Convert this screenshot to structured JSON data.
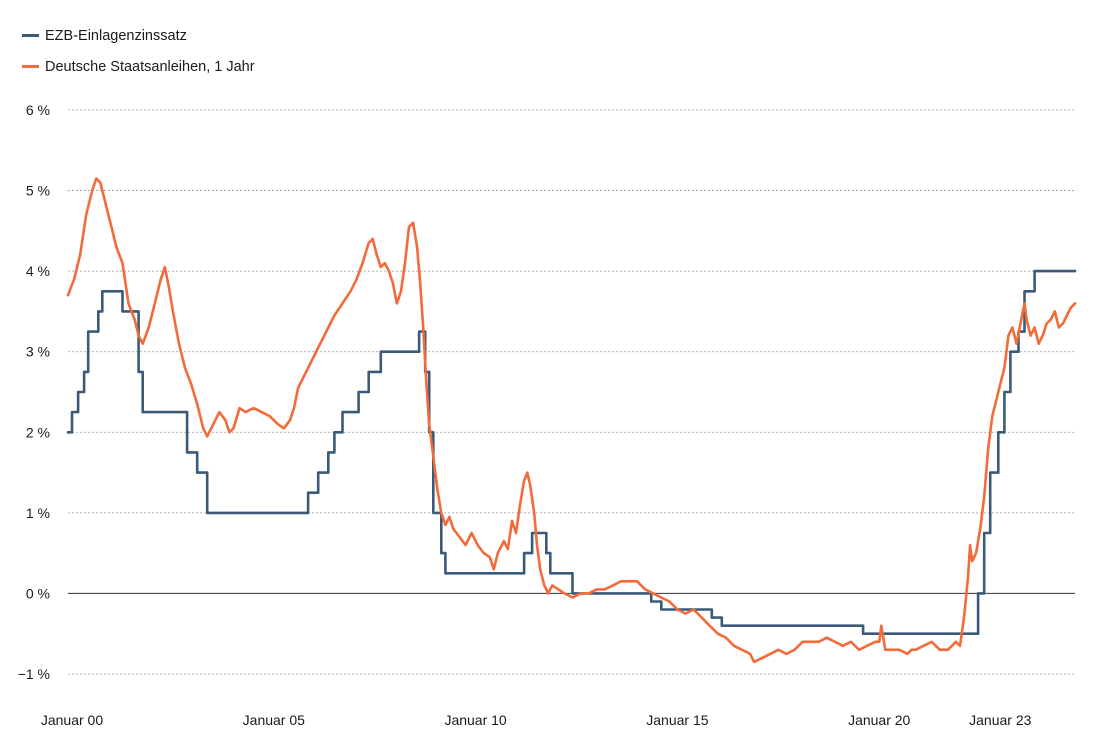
{
  "chart_data": {
    "type": "line",
    "title": "",
    "xlabel": "",
    "ylabel": "",
    "legend_position": "top-left",
    "grid": "horizontal-dashed",
    "xlim": [
      2000.0,
      2024.95
    ],
    "ylim": [
      -1,
      6
    ],
    "x_ticks": [
      {
        "value": 2000.0,
        "label": "Januar 00"
      },
      {
        "value": 2005.0,
        "label": "Januar 05"
      },
      {
        "value": 2010.0,
        "label": "Januar 10"
      },
      {
        "value": 2015.0,
        "label": "Januar 15"
      },
      {
        "value": 2020.0,
        "label": "Januar 20"
      },
      {
        "value": 2023.0,
        "label": "Januar 23"
      }
    ],
    "y_ticks": [
      {
        "value": 6,
        "label": "6 %"
      },
      {
        "value": 5,
        "label": "5 %"
      },
      {
        "value": 4,
        "label": "4 %"
      },
      {
        "value": 3,
        "label": "3 %"
      },
      {
        "value": 2,
        "label": "2 %"
      },
      {
        "value": 1,
        "label": "1 %"
      },
      {
        "value": 0,
        "label": "0 %"
      },
      {
        "value": -1,
        "label": "−1 %"
      }
    ],
    "series": [
      {
        "name": "EZB-Einlagenzinssatz",
        "color": "#3a5a78",
        "style": "step",
        "points": [
          [
            2000.0,
            2.0
          ],
          [
            2000.1,
            2.25
          ],
          [
            2000.25,
            2.5
          ],
          [
            2000.4,
            2.75
          ],
          [
            2000.5,
            3.25
          ],
          [
            2000.75,
            3.5
          ],
          [
            2000.85,
            3.75
          ],
          [
            2001.35,
            3.5
          ],
          [
            2001.75,
            2.75
          ],
          [
            2001.85,
            2.25
          ],
          [
            2002.95,
            1.75
          ],
          [
            2003.2,
            1.5
          ],
          [
            2003.45,
            1.0
          ],
          [
            2005.95,
            1.25
          ],
          [
            2006.2,
            1.5
          ],
          [
            2006.45,
            1.75
          ],
          [
            2006.6,
            2.0
          ],
          [
            2006.8,
            2.25
          ],
          [
            2007.2,
            2.5
          ],
          [
            2007.45,
            2.75
          ],
          [
            2007.75,
            3.0
          ],
          [
            2008.7,
            3.25
          ],
          [
            2008.85,
            2.75
          ],
          [
            2008.95,
            2.0
          ],
          [
            2009.05,
            1.0
          ],
          [
            2009.15,
            1.0
          ],
          [
            2009.25,
            0.5
          ],
          [
            2009.35,
            0.25
          ],
          [
            2011.3,
            0.5
          ],
          [
            2011.5,
            0.75
          ],
          [
            2011.85,
            0.5
          ],
          [
            2011.95,
            0.25
          ],
          [
            2012.5,
            0.0
          ],
          [
            2014.45,
            -0.1
          ],
          [
            2014.7,
            -0.2
          ],
          [
            2015.95,
            -0.3
          ],
          [
            2016.2,
            -0.4
          ],
          [
            2019.7,
            -0.5
          ],
          [
            2022.55,
            0.0
          ],
          [
            2022.7,
            0.75
          ],
          [
            2022.85,
            1.5
          ],
          [
            2023.05,
            2.0
          ],
          [
            2023.2,
            2.5
          ],
          [
            2023.35,
            3.0
          ],
          [
            2023.55,
            3.25
          ],
          [
            2023.7,
            3.75
          ],
          [
            2023.95,
            4.0
          ],
          [
            2024.95,
            4.0
          ]
        ]
      },
      {
        "name": "Deutsche Staatsanleihen, 1 Jahr",
        "color": "#f26b3a",
        "style": "line",
        "points": [
          [
            2000.0,
            3.7
          ],
          [
            2000.15,
            3.9
          ],
          [
            2000.3,
            4.2
          ],
          [
            2000.45,
            4.7
          ],
          [
            2000.6,
            5.0
          ],
          [
            2000.7,
            5.15
          ],
          [
            2000.8,
            5.1
          ],
          [
            2000.9,
            4.9
          ],
          [
            2001.05,
            4.6
          ],
          [
            2001.2,
            4.3
          ],
          [
            2001.35,
            4.1
          ],
          [
            2001.5,
            3.6
          ],
          [
            2001.65,
            3.4
          ],
          [
            2001.75,
            3.2
          ],
          [
            2001.85,
            3.1
          ],
          [
            2002.0,
            3.3
          ],
          [
            2002.15,
            3.6
          ],
          [
            2002.3,
            3.9
          ],
          [
            2002.4,
            4.05
          ],
          [
            2002.5,
            3.8
          ],
          [
            2002.6,
            3.5
          ],
          [
            2002.75,
            3.1
          ],
          [
            2002.9,
            2.8
          ],
          [
            2003.05,
            2.6
          ],
          [
            2003.2,
            2.35
          ],
          [
            2003.35,
            2.05
          ],
          [
            2003.45,
            1.95
          ],
          [
            2003.6,
            2.1
          ],
          [
            2003.75,
            2.25
          ],
          [
            2003.9,
            2.15
          ],
          [
            2004.0,
            2.0
          ],
          [
            2004.1,
            2.05
          ],
          [
            2004.25,
            2.3
          ],
          [
            2004.4,
            2.25
          ],
          [
            2004.6,
            2.3
          ],
          [
            2004.8,
            2.25
          ],
          [
            2005.0,
            2.2
          ],
          [
            2005.2,
            2.1
          ],
          [
            2005.35,
            2.05
          ],
          [
            2005.5,
            2.15
          ],
          [
            2005.6,
            2.3
          ],
          [
            2005.7,
            2.55
          ],
          [
            2005.85,
            2.7
          ],
          [
            2006.0,
            2.85
          ],
          [
            2006.2,
            3.05
          ],
          [
            2006.4,
            3.25
          ],
          [
            2006.6,
            3.45
          ],
          [
            2006.8,
            3.6
          ],
          [
            2007.0,
            3.75
          ],
          [
            2007.15,
            3.9
          ],
          [
            2007.3,
            4.1
          ],
          [
            2007.45,
            4.35
          ],
          [
            2007.55,
            4.4
          ],
          [
            2007.65,
            4.2
          ],
          [
            2007.75,
            4.05
          ],
          [
            2007.85,
            4.1
          ],
          [
            2007.95,
            4.0
          ],
          [
            2008.05,
            3.85
          ],
          [
            2008.15,
            3.6
          ],
          [
            2008.25,
            3.75
          ],
          [
            2008.35,
            4.1
          ],
          [
            2008.45,
            4.55
          ],
          [
            2008.55,
            4.6
          ],
          [
            2008.65,
            4.3
          ],
          [
            2008.72,
            3.9
          ],
          [
            2008.8,
            3.3
          ],
          [
            2008.88,
            2.6
          ],
          [
            2008.95,
            2.1
          ],
          [
            2009.05,
            1.7
          ],
          [
            2009.15,
            1.3
          ],
          [
            2009.25,
            1.0
          ],
          [
            2009.35,
            0.85
          ],
          [
            2009.45,
            0.95
          ],
          [
            2009.55,
            0.8
          ],
          [
            2009.7,
            0.7
          ],
          [
            2009.85,
            0.6
          ],
          [
            2010.0,
            0.75
          ],
          [
            2010.15,
            0.6
          ],
          [
            2010.3,
            0.5
          ],
          [
            2010.45,
            0.45
          ],
          [
            2010.55,
            0.3
          ],
          [
            2010.65,
            0.5
          ],
          [
            2010.8,
            0.65
          ],
          [
            2010.9,
            0.55
          ],
          [
            2011.0,
            0.9
          ],
          [
            2011.1,
            0.75
          ],
          [
            2011.2,
            1.1
          ],
          [
            2011.3,
            1.4
          ],
          [
            2011.38,
            1.5
          ],
          [
            2011.45,
            1.35
          ],
          [
            2011.55,
            1.0
          ],
          [
            2011.62,
            0.6
          ],
          [
            2011.7,
            0.3
          ],
          [
            2011.8,
            0.1
          ],
          [
            2011.9,
            0.0
          ],
          [
            2012.0,
            0.1
          ],
          [
            2012.15,
            0.05
          ],
          [
            2012.3,
            0.0
          ],
          [
            2012.5,
            -0.05
          ],
          [
            2012.7,
            0.0
          ],
          [
            2012.9,
            0.0
          ],
          [
            2013.1,
            0.05
          ],
          [
            2013.3,
            0.05
          ],
          [
            2013.5,
            0.1
          ],
          [
            2013.7,
            0.15
          ],
          [
            2013.9,
            0.15
          ],
          [
            2014.1,
            0.15
          ],
          [
            2014.3,
            0.05
          ],
          [
            2014.5,
            0.0
          ],
          [
            2014.7,
            -0.05
          ],
          [
            2014.9,
            -0.1
          ],
          [
            2015.1,
            -0.2
          ],
          [
            2015.3,
            -0.25
          ],
          [
            2015.5,
            -0.2
          ],
          [
            2015.7,
            -0.3
          ],
          [
            2015.9,
            -0.4
          ],
          [
            2016.1,
            -0.5
          ],
          [
            2016.3,
            -0.55
          ],
          [
            2016.5,
            -0.65
          ],
          [
            2016.7,
            -0.7
          ],
          [
            2016.9,
            -0.75
          ],
          [
            2017.0,
            -0.85
          ],
          [
            2017.2,
            -0.8
          ],
          [
            2017.4,
            -0.75
          ],
          [
            2017.6,
            -0.7
          ],
          [
            2017.8,
            -0.75
          ],
          [
            2018.0,
            -0.7
          ],
          [
            2018.2,
            -0.6
          ],
          [
            2018.4,
            -0.6
          ],
          [
            2018.6,
            -0.6
          ],
          [
            2018.8,
            -0.55
          ],
          [
            2019.0,
            -0.6
          ],
          [
            2019.2,
            -0.65
          ],
          [
            2019.4,
            -0.6
          ],
          [
            2019.6,
            -0.7
          ],
          [
            2019.8,
            -0.65
          ],
          [
            2020.0,
            -0.6
          ],
          [
            2020.1,
            -0.6
          ],
          [
            2020.15,
            -0.4
          ],
          [
            2020.25,
            -0.7
          ],
          [
            2020.4,
            -0.7
          ],
          [
            2020.6,
            -0.7
          ],
          [
            2020.8,
            -0.75
          ],
          [
            2020.9,
            -0.7
          ],
          [
            2021.0,
            -0.7
          ],
          [
            2021.2,
            -0.65
          ],
          [
            2021.4,
            -0.6
          ],
          [
            2021.6,
            -0.7
          ],
          [
            2021.8,
            -0.7
          ],
          [
            2022.0,
            -0.6
          ],
          [
            2022.1,
            -0.65
          ],
          [
            2022.2,
            -0.3
          ],
          [
            2022.3,
            0.2
          ],
          [
            2022.35,
            0.6
          ],
          [
            2022.4,
            0.4
          ],
          [
            2022.5,
            0.5
          ],
          [
            2022.6,
            0.8
          ],
          [
            2022.7,
            1.2
          ],
          [
            2022.8,
            1.8
          ],
          [
            2022.9,
            2.2
          ],
          [
            2023.0,
            2.4
          ],
          [
            2023.1,
            2.6
          ],
          [
            2023.2,
            2.8
          ],
          [
            2023.3,
            3.2
          ],
          [
            2023.4,
            3.3
          ],
          [
            2023.5,
            3.1
          ],
          [
            2023.6,
            3.35
          ],
          [
            2023.7,
            3.6
          ],
          [
            2023.75,
            3.4
          ],
          [
            2023.85,
            3.2
          ],
          [
            2023.95,
            3.3
          ],
          [
            2024.05,
            3.1
          ],
          [
            2024.15,
            3.2
          ],
          [
            2024.25,
            3.35
          ],
          [
            2024.35,
            3.4
          ],
          [
            2024.45,
            3.5
          ],
          [
            2024.55,
            3.3
          ],
          [
            2024.65,
            3.35
          ],
          [
            2024.75,
            3.45
          ],
          [
            2024.85,
            3.55
          ],
          [
            2024.95,
            3.6
          ]
        ]
      }
    ]
  }
}
